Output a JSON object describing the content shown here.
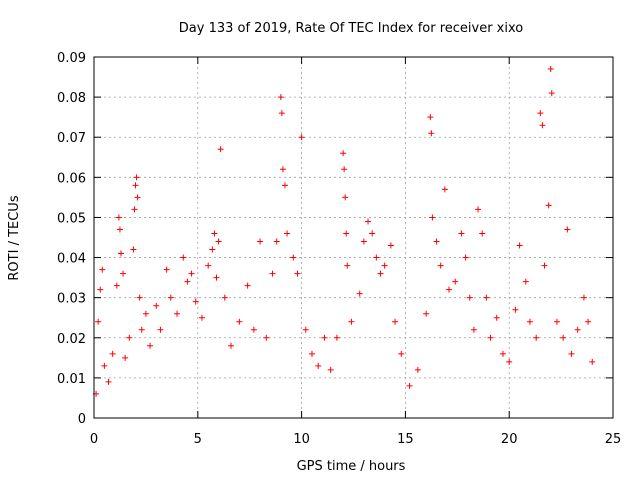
{
  "chart_data": {
    "type": "scatter",
    "title": "Day 133 of 2019, Rate Of TEC Index for receiver xixo",
    "xlabel": "GPS time / hours",
    "ylabel": "ROTI / TECUs",
    "xlim": [
      0,
      25
    ],
    "ylim": [
      0,
      0.09
    ],
    "xticks": [
      0,
      5,
      10,
      15,
      20,
      25
    ],
    "xtick_labels": [
      "0",
      "5",
      "10",
      "15",
      "20",
      "25"
    ],
    "yticks": [
      0,
      0.01,
      0.02,
      0.03,
      0.04,
      0.05,
      0.06,
      0.07,
      0.08,
      0.09
    ],
    "ytick_labels": [
      "0",
      "0.01",
      "0.02",
      "0.03",
      "0.04",
      "0.05",
      "0.06",
      "0.07",
      "0.08",
      "0.09"
    ],
    "grid": true,
    "marker": "+",
    "marker_color": "#ff0000",
    "series": [
      {
        "name": "ROTI",
        "points": [
          [
            0.1,
            0.006
          ],
          [
            0.2,
            0.024
          ],
          [
            0.3,
            0.032
          ],
          [
            0.4,
            0.037
          ],
          [
            0.5,
            0.013
          ],
          [
            0.7,
            0.009
          ],
          [
            0.9,
            0.016
          ],
          [
            1.1,
            0.033
          ],
          [
            1.2,
            0.05
          ],
          [
            1.25,
            0.047
          ],
          [
            1.3,
            0.041
          ],
          [
            1.4,
            0.036
          ],
          [
            1.5,
            0.015
          ],
          [
            1.7,
            0.02
          ],
          [
            1.9,
            0.042
          ],
          [
            1.95,
            0.052
          ],
          [
            2.0,
            0.058
          ],
          [
            2.05,
            0.06
          ],
          [
            2.1,
            0.055
          ],
          [
            2.2,
            0.03
          ],
          [
            2.3,
            0.022
          ],
          [
            2.5,
            0.026
          ],
          [
            2.7,
            0.018
          ],
          [
            3.0,
            0.028
          ],
          [
            3.2,
            0.022
          ],
          [
            3.5,
            0.037
          ],
          [
            3.7,
            0.03
          ],
          [
            4.0,
            0.026
          ],
          [
            4.3,
            0.04
          ],
          [
            4.5,
            0.034
          ],
          [
            4.7,
            0.036
          ],
          [
            4.9,
            0.029
          ],
          [
            5.2,
            0.025
          ],
          [
            5.5,
            0.038
          ],
          [
            5.7,
            0.042
          ],
          [
            5.8,
            0.046
          ],
          [
            5.9,
            0.035
          ],
          [
            6.0,
            0.044
          ],
          [
            6.1,
            0.067
          ],
          [
            6.3,
            0.03
          ],
          [
            6.6,
            0.018
          ],
          [
            7.0,
            0.024
          ],
          [
            7.4,
            0.033
          ],
          [
            7.7,
            0.022
          ],
          [
            8.0,
            0.044
          ],
          [
            8.3,
            0.02
          ],
          [
            8.6,
            0.036
          ],
          [
            8.8,
            0.044
          ],
          [
            9.0,
            0.08
          ],
          [
            9.05,
            0.076
          ],
          [
            9.1,
            0.062
          ],
          [
            9.2,
            0.058
          ],
          [
            9.3,
            0.046
          ],
          [
            9.6,
            0.04
          ],
          [
            9.8,
            0.036
          ],
          [
            10.0,
            0.07
          ],
          [
            10.2,
            0.022
          ],
          [
            10.5,
            0.016
          ],
          [
            10.8,
            0.013
          ],
          [
            11.1,
            0.02
          ],
          [
            11.4,
            0.012
          ],
          [
            11.7,
            0.02
          ],
          [
            12.0,
            0.066
          ],
          [
            12.05,
            0.062
          ],
          [
            12.1,
            0.055
          ],
          [
            12.15,
            0.046
          ],
          [
            12.2,
            0.038
          ],
          [
            12.4,
            0.024
          ],
          [
            12.8,
            0.031
          ],
          [
            13.0,
            0.044
          ],
          [
            13.2,
            0.049
          ],
          [
            13.4,
            0.046
          ],
          [
            13.6,
            0.04
          ],
          [
            13.8,
            0.036
          ],
          [
            14.0,
            0.038
          ],
          [
            14.3,
            0.043
          ],
          [
            14.5,
            0.024
          ],
          [
            14.8,
            0.016
          ],
          [
            15.2,
            0.008
          ],
          [
            15.6,
            0.012
          ],
          [
            16.0,
            0.026
          ],
          [
            16.2,
            0.075
          ],
          [
            16.25,
            0.071
          ],
          [
            16.3,
            0.05
          ],
          [
            16.5,
            0.044
          ],
          [
            16.7,
            0.038
          ],
          [
            16.9,
            0.057
          ],
          [
            17.1,
            0.032
          ],
          [
            17.4,
            0.034
          ],
          [
            17.7,
            0.046
          ],
          [
            17.9,
            0.04
          ],
          [
            18.1,
            0.03
          ],
          [
            18.3,
            0.022
          ],
          [
            18.5,
            0.052
          ],
          [
            18.7,
            0.046
          ],
          [
            18.9,
            0.03
          ],
          [
            19.1,
            0.02
          ],
          [
            19.4,
            0.025
          ],
          [
            19.7,
            0.016
          ],
          [
            20.0,
            0.014
          ],
          [
            20.3,
            0.027
          ],
          [
            20.5,
            0.043
          ],
          [
            20.8,
            0.034
          ],
          [
            21.0,
            0.024
          ],
          [
            21.3,
            0.02
          ],
          [
            21.5,
            0.076
          ],
          [
            21.6,
            0.073
          ],
          [
            21.7,
            0.038
          ],
          [
            21.9,
            0.053
          ],
          [
            22.0,
            0.087
          ],
          [
            22.05,
            0.081
          ],
          [
            22.3,
            0.024
          ],
          [
            22.6,
            0.02
          ],
          [
            22.8,
            0.047
          ],
          [
            23.0,
            0.016
          ],
          [
            23.3,
            0.022
          ],
          [
            23.6,
            0.03
          ],
          [
            23.8,
            0.024
          ],
          [
            24.0,
            0.014
          ]
        ]
      }
    ]
  }
}
